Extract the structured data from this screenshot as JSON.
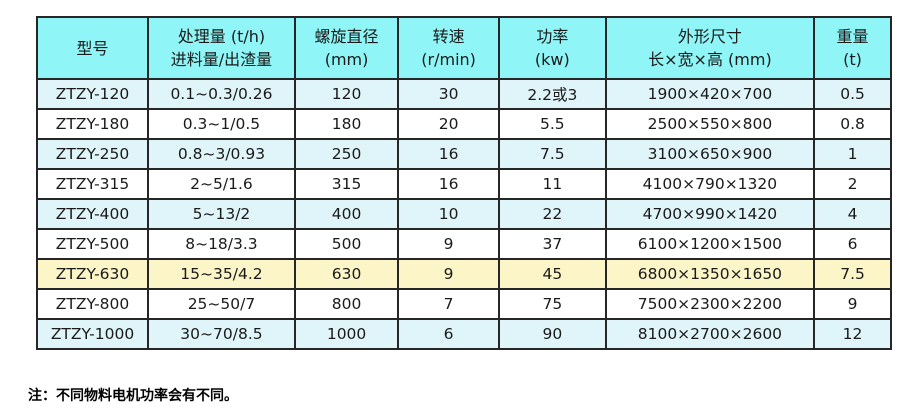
{
  "chart_data": {
    "type": "table",
    "columns": [
      "型号",
      "处理量 (t/h) 进料量/出渣量",
      "螺旋直径 (mm)",
      "转速 (r/min)",
      "功率 (kw)",
      "外形尺寸 长×宽×高 (mm)",
      "重量 (t)"
    ],
    "rows": [
      [
        "ZTZY-120",
        "0.1~0.3/0.26",
        "120",
        "30",
        "2.2或3",
        "1900×420×700",
        "0.5"
      ],
      [
        "ZTZY-180",
        "0.3~1/0.5",
        "180",
        "20",
        "5.5",
        "2500×550×800",
        "0.8"
      ],
      [
        "ZTZY-250",
        "0.8~3/0.93",
        "250",
        "16",
        "7.5",
        "3100×650×900",
        "1"
      ],
      [
        "ZTZY-315",
        "2~5/1.6",
        "315",
        "16",
        "11",
        "4100×790×1320",
        "2"
      ],
      [
        "ZTZY-400",
        "5~13/2",
        "400",
        "10",
        "22",
        "4700×990×1420",
        "4"
      ],
      [
        "ZTZY-500",
        "8~18/3.3",
        "500",
        "9",
        "37",
        "6100×1200×1500",
        "6"
      ],
      [
        "ZTZY-630",
        "15~35/4.2",
        "630",
        "9",
        "45",
        "6800×1350×1650",
        "7.5"
      ],
      [
        "ZTZY-800",
        "25~50/7",
        "800",
        "7",
        "75",
        "7500×2300×2200",
        "9"
      ],
      [
        "ZTZY-1000",
        "30~70/8.5",
        "1000",
        "6",
        "90",
        "8100×2700×2600",
        "12"
      ]
    ],
    "highlighted_row": "ZTZY-630",
    "note": "注：不同物料电机功率会有不同。"
  },
  "table": {
    "headers": [
      {
        "line1": "型号",
        "line2": ""
      },
      {
        "line1": "处理量 (t/h)",
        "line2": "进料量/出渣量"
      },
      {
        "line1": "螺旋直径",
        "line2": "(mm)"
      },
      {
        "line1": "转速",
        "line2": "(r/min)"
      },
      {
        "line1": "功率",
        "line2": "(kw)"
      },
      {
        "line1": "外形尺寸",
        "line2": "长×宽×高 (mm)"
      },
      {
        "line1": "重量",
        "line2": "(t)"
      }
    ],
    "column_names": [
      "model",
      "capacity",
      "diameter",
      "speed",
      "power",
      "dimensions",
      "weight"
    ],
    "row_styles": [
      "alt",
      "white",
      "alt",
      "white",
      "alt",
      "white",
      "highlight",
      "white",
      "alt"
    ]
  },
  "note": "注：不同物料电机功率会有不同。",
  "colors": {
    "header_bg": "#8FF5F6",
    "row_alt_bg": "#E0F5F9",
    "row_highlight_bg": "#FBF5C7",
    "row_white_bg": "#FFFFFF",
    "border": "#262626",
    "text": "#1A1A1A"
  }
}
